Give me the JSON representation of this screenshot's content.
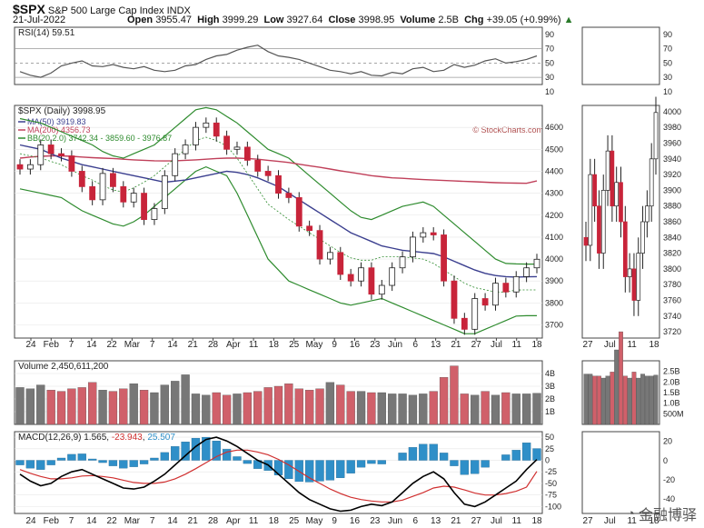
{
  "header": {
    "symbol": "$SPX",
    "name": "S&P 500 Large Cap Index",
    "exchange": "INDX",
    "date": "21-Jul-2022",
    "open_label": "Open",
    "open": "3955.47",
    "high_label": "High",
    "high": "3999.29",
    "low_label": "Low",
    "low": "3927.64",
    "close_label": "Close",
    "close": "3998.95",
    "volume_label": "Volume",
    "volume": "2.5B",
    "chg_label": "Chg",
    "chg": "+39.05 (+0.99%)",
    "source": "© StockCharts.com"
  },
  "watermark": {
    "text": "金融博驿",
    "icon": "wechat-icon"
  },
  "chart_data": [
    {
      "type": "line",
      "panel": "rsi",
      "label": "RSI(14) 59.51",
      "ylim": [
        20,
        100
      ],
      "ticks": [
        "90",
        "70",
        "50",
        "30",
        "10"
      ],
      "tick_values": [
        90,
        70,
        50,
        30,
        10
      ],
      "series": [
        {
          "name": "RSI(14)",
          "color": "#555555",
          "values": [
            38,
            33,
            30,
            36,
            46,
            50,
            53,
            46,
            45,
            48,
            44,
            42,
            45,
            40,
            38,
            40,
            46,
            48,
            55,
            60,
            62,
            68,
            72,
            75,
            66,
            60,
            58,
            55,
            50,
            45,
            40,
            38,
            35,
            38,
            33,
            32,
            37,
            35,
            42,
            44,
            38,
            40,
            48,
            44,
            47,
            53,
            56,
            50,
            52,
            55,
            60
          ]
        }
      ]
    },
    {
      "type": "candlestick",
      "panel": "price",
      "label": "$SPX (Daily) 3998.95",
      "ylim": [
        3640,
        4700
      ],
      "ticks": [
        "4600",
        "4500",
        "4400",
        "4300",
        "4200",
        "4100",
        "4000",
        "3900",
        "3800",
        "3700"
      ],
      "tick_values": [
        4600,
        4500,
        4400,
        4300,
        4200,
        4100,
        4000,
        3900,
        3800,
        3700
      ],
      "x_labels": [
        "24",
        "Feb",
        "7",
        "14",
        "22",
        "Mar",
        "7",
        "14",
        "21",
        "28",
        "Apr",
        "11",
        "18",
        "25",
        "May",
        "9",
        "16",
        "23",
        "Jun",
        "6",
        "13",
        "21",
        "27",
        "Jul",
        "11",
        "18"
      ],
      "legend": [
        {
          "name": "MA(50) 3919.83",
          "color": "#3b3f8f"
        },
        {
          "name": "MA(200) 4356.73",
          "color": "#c0405a"
        },
        {
          "name": "BB(20,2.0) 3742.34 - 3859.60 - 3976.87",
          "color": "#2e8b2e"
        }
      ],
      "close": [
        4410,
        4430,
        4520,
        4480,
        4470,
        4400,
        4330,
        4270,
        4390,
        4330,
        4260,
        4300,
        4180,
        4230,
        4380,
        4480,
        4520,
        4600,
        4620,
        4560,
        4500,
        4510,
        4450,
        4400,
        4380,
        4300,
        4280,
        4150,
        4130,
        4000,
        4030,
        3930,
        3900,
        3960,
        3840,
        3880,
        3960,
        4010,
        4100,
        4120,
        4110,
        3900,
        3730,
        3680,
        3820,
        3790,
        3890,
        3850,
        3920,
        3960,
        3999
      ],
      "ma50": [
        4520,
        4510,
        4500,
        4480,
        4460,
        4445,
        4430,
        4420,
        4410,
        4400,
        4390,
        4380,
        4370,
        4360,
        4350,
        4355,
        4360,
        4370,
        4380,
        4390,
        4400,
        4395,
        4385,
        4370,
        4350,
        4330,
        4300,
        4270,
        4240,
        4210,
        4180,
        4150,
        4120,
        4100,
        4080,
        4060,
        4050,
        4040,
        4035,
        4030,
        4025,
        4010,
        3990,
        3970,
        3950,
        3935,
        3925,
        3920,
        3918,
        3919,
        3920
      ],
      "ma200": [
        4460,
        4465,
        4468,
        4470,
        4470,
        4468,
        4465,
        4462,
        4460,
        4458,
        4455,
        4452,
        4450,
        4448,
        4447,
        4448,
        4450,
        4452,
        4455,
        4458,
        4460,
        4460,
        4458,
        4455,
        4450,
        4445,
        4440,
        4432,
        4425,
        4418,
        4410,
        4402,
        4395,
        4388,
        4380,
        4375,
        4370,
        4368,
        4365,
        4362,
        4360,
        4358,
        4356,
        4354,
        4352,
        4350,
        4348,
        4347,
        4346,
        4345,
        4356
      ],
      "bb_upper": [
        4640,
        4630,
        4620,
        4600,
        4580,
        4560,
        4540,
        4520,
        4490,
        4470,
        4460,
        4480,
        4500,
        4520,
        4560,
        4600,
        4640,
        4680,
        4690,
        4680,
        4650,
        4620,
        4580,
        4540,
        4500,
        4480,
        4460,
        4420,
        4380,
        4340,
        4300,
        4260,
        4220,
        4190,
        4180,
        4200,
        4220,
        4240,
        4250,
        4260,
        4240,
        4200,
        4160,
        4120,
        4080,
        4040,
        4000,
        3980,
        3978,
        3977,
        3977
      ],
      "bb_lower": [
        4320,
        4310,
        4300,
        4290,
        4280,
        4250,
        4220,
        4200,
        4180,
        4160,
        4150,
        4170,
        4200,
        4240,
        4280,
        4320,
        4360,
        4400,
        4420,
        4400,
        4380,
        4300,
        4200,
        4100,
        4000,
        3950,
        3900,
        3880,
        3860,
        3840,
        3820,
        3800,
        3790,
        3800,
        3810,
        3820,
        3800,
        3780,
        3760,
        3740,
        3720,
        3700,
        3680,
        3660,
        3660,
        3680,
        3700,
        3720,
        3740,
        3742,
        3742
      ]
    },
    {
      "type": "bar",
      "panel": "volume",
      "label": "Volume 2,450,611,200",
      "ylim": [
        0,
        5000000000
      ],
      "ticks": [
        "4B",
        "3B",
        "2B",
        "1B"
      ],
      "tick_values": [
        4000000000,
        3000000000,
        2000000000,
        1000000000
      ],
      "values": [
        2.9,
        2.8,
        3.1,
        2.7,
        2.6,
        2.8,
        2.9,
        3.3,
        2.7,
        2.6,
        2.8,
        3.2,
        2.7,
        2.5,
        3.1,
        3.4,
        3.9,
        2.4,
        2.3,
        2.5,
        2.3,
        2.4,
        2.5,
        2.6,
        2.9,
        3.0,
        3.2,
        2.8,
        2.7,
        2.8,
        3.3,
        3.1,
        2.6,
        2.6,
        2.5,
        2.5,
        2.4,
        2.4,
        2.3,
        2.4,
        2.6,
        3.7,
        4.6,
        2.4,
        2.3,
        2.6,
        2.3,
        2.5,
        2.4,
        2.4,
        2.45
      ]
    },
    {
      "type": "line",
      "panel": "macd",
      "label": "MACD(12,26,9) 1.565, -23.943, 25.507",
      "label_parts": [
        "MACD(12,26,9) 1.565, ",
        "-23.943",
        ", ",
        "25.507"
      ],
      "ylim": [
        -115,
        62
      ],
      "ticks": [
        "50",
        "25",
        "0",
        "-25",
        "-50",
        "-75",
        "-100"
      ],
      "tick_values": [
        50,
        25,
        0,
        -25,
        -50,
        -75,
        -100
      ],
      "series": [
        {
          "name": "MACD",
          "color": "#000000",
          "values": [
            -30,
            -45,
            -55,
            -50,
            -35,
            -25,
            -20,
            -30,
            -40,
            -50,
            -60,
            -62,
            -58,
            -45,
            -30,
            -10,
            10,
            30,
            45,
            50,
            42,
            30,
            15,
            0,
            -10,
            -30,
            -50,
            -70,
            -85,
            -95,
            -105,
            -110,
            -108,
            -100,
            -95,
            -98,
            -90,
            -70,
            -50,
            -35,
            -25,
            -40,
            -70,
            -95,
            -100,
            -90,
            -75,
            -60,
            -45,
            -20,
            1.565
          ]
        },
        {
          "name": "Signal",
          "color": "#d03030",
          "values": [
            -20,
            -28,
            -35,
            -40,
            -40,
            -38,
            -34,
            -33,
            -35,
            -38,
            -43,
            -48,
            -50,
            -50,
            -47,
            -40,
            -30,
            -18,
            -5,
            8,
            18,
            22,
            22,
            18,
            12,
            2,
            -10,
            -24,
            -38,
            -50,
            -62,
            -72,
            -80,
            -85,
            -88,
            -90,
            -90,
            -86,
            -78,
            -70,
            -60,
            -56,
            -58,
            -64,
            -71,
            -75,
            -75,
            -72,
            -67,
            -58,
            -23.943
          ]
        },
        {
          "name": "Histogram",
          "color": "#2f8fc8",
          "values": [
            -10,
            -17,
            -20,
            -10,
            5,
            13,
            14,
            3,
            -5,
            -12,
            -17,
            -14,
            -8,
            5,
            17,
            30,
            40,
            48,
            50,
            42,
            24,
            8,
            -7,
            -18,
            -22,
            -32,
            -40,
            -46,
            -47,
            -45,
            -43,
            -38,
            -28,
            -15,
            -7,
            -8,
            0,
            16,
            28,
            35,
            35,
            16,
            -12,
            -31,
            -29,
            -15,
            0,
            12,
            22,
            38,
            25.507
          ]
        }
      ]
    },
    {
      "type": "line",
      "panel": "inset",
      "label": "",
      "x_labels": [
        "27",
        "Jul",
        "11",
        "18"
      ],
      "price_ticks": [
        "4000",
        "3980",
        "3960",
        "3940",
        "3920",
        "3900",
        "3880",
        "3860",
        "3840",
        "3820",
        "3800",
        "3780",
        "3760",
        "3740",
        "3720"
      ],
      "price_tick_values": [
        4000,
        3980,
        3960,
        3940,
        3920,
        3900,
        3880,
        3860,
        3840,
        3820,
        3800,
        3780,
        3760,
        3740,
        3720
      ],
      "price_ylim": [
        3712,
        4008
      ],
      "rsi_ticks": [
        "90",
        "70",
        "50",
        "30",
        "10"
      ],
      "volume_ticks": [
        "2.5B",
        "2.0B",
        "1.5B",
        "1.0B",
        "500M"
      ],
      "volume_tick_values": [
        2500000000,
        2000000000,
        1500000000,
        1000000000,
        500000000
      ],
      "macd_ticks": [
        "20",
        "0",
        "-20",
        "-40"
      ],
      "macd_tick_values": [
        20,
        0,
        -20,
        -40
      ],
      "close": [
        3830,
        3920,
        3880,
        3820,
        3900,
        3950,
        3880,
        3910,
        3860,
        3790,
        3800,
        3760,
        3820,
        3860,
        3880,
        3940,
        3999
      ]
    }
  ]
}
